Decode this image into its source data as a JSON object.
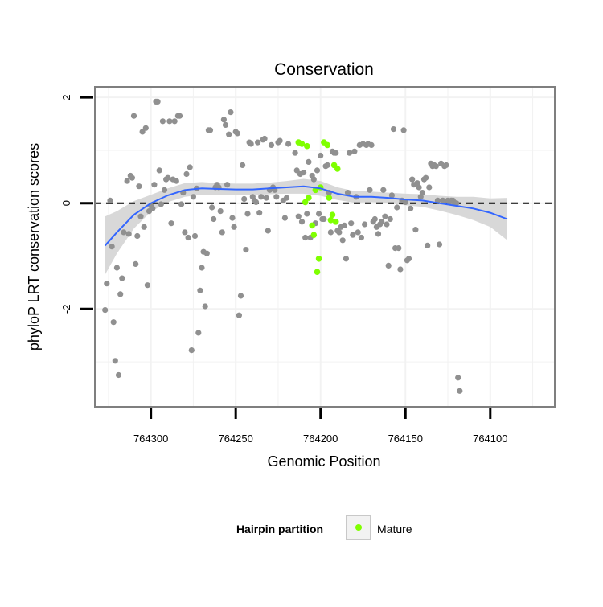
{
  "chart_data": {
    "type": "scatter",
    "title": "Conservation",
    "xlabel": "Genomic Position",
    "ylabel": "phyloP LRT conservation scores",
    "x_reversed": true,
    "xlim": [
      764062,
      764333
    ],
    "ylim": [
      -3.85,
      2.2
    ],
    "x_ticks": [
      764300,
      764250,
      764200,
      764150,
      764100
    ],
    "y_ticks": [
      -2,
      0,
      2
    ],
    "grid": true,
    "legend": {
      "title": "Hairpin partition",
      "position": "bottom",
      "entries": [
        {
          "label": "Mature",
          "color": "#7fff00"
        }
      ]
    },
    "colors": {
      "points": "#909090",
      "mature": "#7fff00",
      "smooth": "#3366ff",
      "ribbon": "#d4d4d4",
      "reference_line": "#000000"
    },
    "reference_line_y": 0,
    "series": [
      {
        "points": [
          [
            764327,
            -2.02
          ],
          [
            764326,
            -1.52
          ],
          [
            764324,
            0.05
          ],
          [
            764323,
            -0.82
          ],
          [
            764322,
            -2.25
          ],
          [
            764321,
            -2.98
          ],
          [
            764320,
            -1.22
          ],
          [
            764319,
            -3.25
          ],
          [
            764318,
            -1.72
          ],
          [
            764317,
            -1.42
          ],
          [
            764316,
            -0.55
          ],
          [
            764314,
            0.42
          ],
          [
            764313,
            -0.58
          ],
          [
            764312,
            0.52
          ],
          [
            764311,
            0.48
          ],
          [
            764310,
            1.65
          ],
          [
            764309,
            -1.15
          ],
          [
            764308,
            -0.62
          ],
          [
            764307,
            0.32
          ],
          [
            764306,
            -0.25
          ],
          [
            764305,
            1.35
          ],
          [
            764304,
            -0.45
          ],
          [
            764303,
            1.42
          ],
          [
            764302,
            -1.55
          ],
          [
            764301,
            -0.15
          ],
          [
            764300,
            -0.05
          ],
          [
            764299,
            -0.1
          ],
          [
            764298,
            0.35
          ],
          [
            764297,
            1.92
          ],
          [
            764296,
            1.92
          ],
          [
            764295,
            0.62
          ],
          [
            764294,
            -0.02
          ],
          [
            764293,
            1.55
          ],
          [
            764292,
            0.25
          ],
          [
            764291,
            0.45
          ],
          [
            764290,
            0.48
          ],
          [
            764289,
            1.55
          ],
          [
            764288,
            -0.38
          ],
          [
            764287,
            0.45
          ],
          [
            764286,
            1.55
          ],
          [
            764285,
            0.42
          ],
          [
            764284,
            1.65
          ],
          [
            764283,
            1.65
          ],
          [
            764282,
            -0.02
          ],
          [
            764281,
            0.2
          ],
          [
            764280,
            -0.55
          ],
          [
            764279,
            0.55
          ],
          [
            764278,
            -0.65
          ],
          [
            764277,
            0.68
          ],
          [
            764276,
            -2.78
          ],
          [
            764275,
            0.12
          ],
          [
            764274,
            -0.62
          ],
          [
            764273,
            0.28
          ],
          [
            764272,
            -2.45
          ],
          [
            764271,
            -1.65
          ],
          [
            764270,
            -1.22
          ],
          [
            764269,
            -0.92
          ],
          [
            764268,
            -1.95
          ],
          [
            764267,
            -0.95
          ],
          [
            764266,
            1.38
          ],
          [
            764265,
            1.38
          ],
          [
            764264,
            -0.08
          ],
          [
            764263,
            -0.3
          ],
          [
            764262,
            0.3
          ],
          [
            764261,
            0.35
          ],
          [
            764260,
            0.3
          ],
          [
            764259,
            -0.15
          ],
          [
            764258,
            -0.55
          ],
          [
            764257,
            1.58
          ],
          [
            764256,
            1.48
          ],
          [
            764255,
            0.35
          ],
          [
            764254,
            1.3
          ],
          [
            764253,
            1.72
          ],
          [
            764252,
            -0.28
          ],
          [
            764251,
            -0.45
          ],
          [
            764250,
            1.35
          ],
          [
            764249,
            1.32
          ],
          [
            764248,
            -2.12
          ],
          [
            764247,
            -1.75
          ],
          [
            764246,
            0.72
          ],
          [
            764245,
            0.08
          ],
          [
            764244,
            -0.88
          ],
          [
            764243,
            -0.2
          ],
          [
            764242,
            1.15
          ],
          [
            764241,
            1.12
          ],
          [
            764240,
            0.12
          ],
          [
            764239,
            0.05
          ],
          [
            764238,
            0.02
          ],
          [
            764237,
            1.15
          ],
          [
            764236,
            -0.18
          ],
          [
            764235,
            0.12
          ],
          [
            764234,
            1.2
          ],
          [
            764233,
            1.22
          ],
          [
            764232,
            0.1
          ],
          [
            764231,
            -0.52
          ],
          [
            764230,
            0.25
          ],
          [
            764229,
            1.1
          ],
          [
            764228,
            0.3
          ],
          [
            764227,
            0.25
          ],
          [
            764226,
            0.12
          ],
          [
            764225,
            1.15
          ],
          [
            764224,
            1.18
          ],
          [
            764222,
            0.05
          ],
          [
            764221,
            -0.28
          ],
          [
            764220,
            0.1
          ],
          [
            764219,
            1.12
          ],
          [
            764215,
            0.95
          ],
          [
            764214,
            0.62
          ],
          [
            764213,
            -0.25
          ],
          [
            764212,
            0.55
          ],
          [
            764211,
            -0.35
          ],
          [
            764210,
            0.58
          ],
          [
            764209,
            -0.65
          ],
          [
            764208,
            -0.2
          ],
          [
            764207,
            0.78
          ],
          [
            764206,
            -0.65
          ],
          [
            764205,
            0.52
          ],
          [
            764204,
            0.45
          ],
          [
            764203,
            -0.38
          ],
          [
            764202,
            0.62
          ],
          [
            764201,
            -0.2
          ],
          [
            764200,
            0.9
          ],
          [
            764199,
            -0.3
          ],
          [
            764198,
            -0.3
          ],
          [
            764197,
            0.7
          ],
          [
            764196,
            0.72
          ],
          [
            764195,
            0.2
          ],
          [
            764194,
            -0.55
          ],
          [
            764193,
            0.98
          ],
          [
            764192,
            0.95
          ],
          [
            764191,
            0.95
          ],
          [
            764190,
            -0.52
          ],
          [
            764189,
            -0.55
          ],
          [
            764188,
            -0.45
          ],
          [
            764187,
            -0.7
          ],
          [
            764186,
            -0.42
          ],
          [
            764185,
            -1.05
          ],
          [
            764184,
            0.2
          ],
          [
            764183,
            0.95
          ],
          [
            764182,
            -0.38
          ],
          [
            764181,
            -0.6
          ],
          [
            764180,
            0.98
          ],
          [
            764179,
            0.12
          ],
          [
            764178,
            -0.55
          ],
          [
            764177,
            1.1
          ],
          [
            764176,
            -0.65
          ],
          [
            764175,
            1.12
          ],
          [
            764174,
            -0.4
          ],
          [
            764173,
            1.1
          ],
          [
            764172,
            1.12
          ],
          [
            764171,
            0.25
          ],
          [
            764170,
            1.1
          ],
          [
            764169,
            -0.35
          ],
          [
            764168,
            -0.3
          ],
          [
            764167,
            -0.45
          ],
          [
            764166,
            -0.58
          ],
          [
            764165,
            -0.4
          ],
          [
            764164,
            -0.35
          ],
          [
            764163,
            0.25
          ],
          [
            764162,
            -0.25
          ],
          [
            764161,
            -0.4
          ],
          [
            764160,
            -1.18
          ],
          [
            764159,
            -0.3
          ],
          [
            764158,
            0.15
          ],
          [
            764157,
            1.4
          ],
          [
            764156,
            -0.85
          ],
          [
            764155,
            -0.08
          ],
          [
            764154,
            -0.85
          ],
          [
            764153,
            -1.25
          ],
          [
            764152,
            0.05
          ],
          [
            764151,
            1.38
          ],
          [
            764150,
            0.02
          ],
          [
            764149,
            -1.08
          ],
          [
            764148,
            -1.05
          ],
          [
            764147,
            -0.1
          ],
          [
            764146,
            0.45
          ],
          [
            764145,
            0.35
          ],
          [
            764144,
            -0.5
          ],
          [
            764143,
            0.38
          ],
          [
            764142,
            0.3
          ],
          [
            764141,
            0.12
          ],
          [
            764140,
            0.2
          ],
          [
            764139,
            0.45
          ],
          [
            764138,
            0.48
          ],
          [
            764137,
            -0.8
          ],
          [
            764136,
            0.3
          ],
          [
            764135,
            0.75
          ],
          [
            764134,
            0.7
          ],
          [
            764133,
            0.72
          ],
          [
            764132,
            0.7
          ],
          [
            764131,
            0.05
          ],
          [
            764130,
            -0.78
          ],
          [
            764129,
            0.75
          ],
          [
            764128,
            0.05
          ],
          [
            764127,
            0.7
          ],
          [
            764126,
            0.72
          ],
          [
            764125,
            0.05
          ],
          [
            764124,
            0.02
          ],
          [
            764123,
            0.05
          ],
          [
            764122,
            0.05
          ],
          [
            764121,
            0.0
          ],
          [
            764120,
            0.0
          ],
          [
            764119,
            -3.3
          ],
          [
            764118,
            -3.55
          ]
        ]
      },
      {
        "name": "Mature",
        "points": [
          [
            764213,
            1.15
          ],
          [
            764211,
            1.12
          ],
          [
            764209,
            0.02
          ],
          [
            764208,
            1.08
          ],
          [
            764207,
            0.1
          ],
          [
            764205,
            -0.42
          ],
          [
            764204,
            -0.6
          ],
          [
            764203,
            0.25
          ],
          [
            764202,
            -1.3
          ],
          [
            764201,
            -1.05
          ],
          [
            764200,
            0.3
          ],
          [
            764198,
            1.15
          ],
          [
            764196,
            1.1
          ],
          [
            764195,
            0.1
          ],
          [
            764194,
            -0.32
          ],
          [
            764193,
            -0.22
          ],
          [
            764192,
            0.72
          ],
          [
            764191,
            -0.35
          ],
          [
            764190,
            0.65
          ]
        ]
      }
    ],
    "smooth": {
      "x": [
        764327,
        764320,
        764310,
        764300,
        764290,
        764280,
        764270,
        764260,
        764250,
        764240,
        764230,
        764220,
        764210,
        764200,
        764190,
        764180,
        764170,
        764160,
        764150,
        764140,
        764130,
        764120,
        764110,
        764100,
        764090
      ],
      "y": [
        -0.8,
        -0.55,
        -0.22,
        0.0,
        0.15,
        0.25,
        0.28,
        0.27,
        0.26,
        0.26,
        0.28,
        0.3,
        0.32,
        0.28,
        0.18,
        0.12,
        0.12,
        0.1,
        0.07,
        0.05,
        0.0,
        -0.05,
        -0.1,
        -0.18,
        -0.3
      ],
      "lower": [
        -1.35,
        -0.95,
        -0.48,
        -0.16,
        0.02,
        0.12,
        0.16,
        0.16,
        0.15,
        0.15,
        0.17,
        0.18,
        0.18,
        0.14,
        0.06,
        0.01,
        0.02,
        0.0,
        -0.04,
        -0.07,
        -0.14,
        -0.22,
        -0.32,
        -0.45,
        -0.7
      ],
      "upper": [
        -0.25,
        -0.15,
        0.04,
        0.16,
        0.28,
        0.38,
        0.4,
        0.38,
        0.37,
        0.37,
        0.39,
        0.42,
        0.46,
        0.42,
        0.3,
        0.23,
        0.22,
        0.2,
        0.18,
        0.17,
        0.14,
        0.12,
        0.12,
        0.09,
        0.1
      ]
    }
  }
}
